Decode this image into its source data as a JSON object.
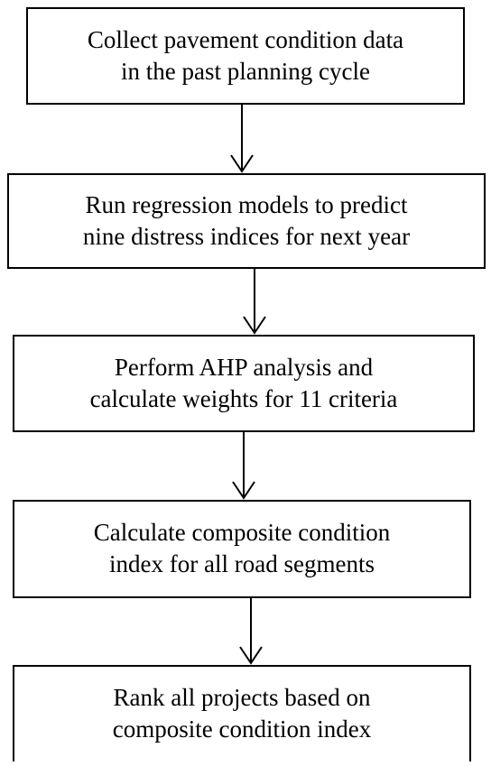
{
  "nodes": [
    {
      "lines": [
        "Collect pavement condition data",
        "in the past planning cycle"
      ]
    },
    {
      "lines": [
        "Run regression models to predict",
        "nine distress indices for next year"
      ]
    },
    {
      "lines": [
        "Perform AHP analysis and",
        "calculate weights for 11 criteria"
      ]
    },
    {
      "lines": [
        "Calculate composite condition",
        "index for all road segments"
      ]
    },
    {
      "lines": [
        "Rank all projects based on",
        "composite condition index"
      ]
    }
  ]
}
